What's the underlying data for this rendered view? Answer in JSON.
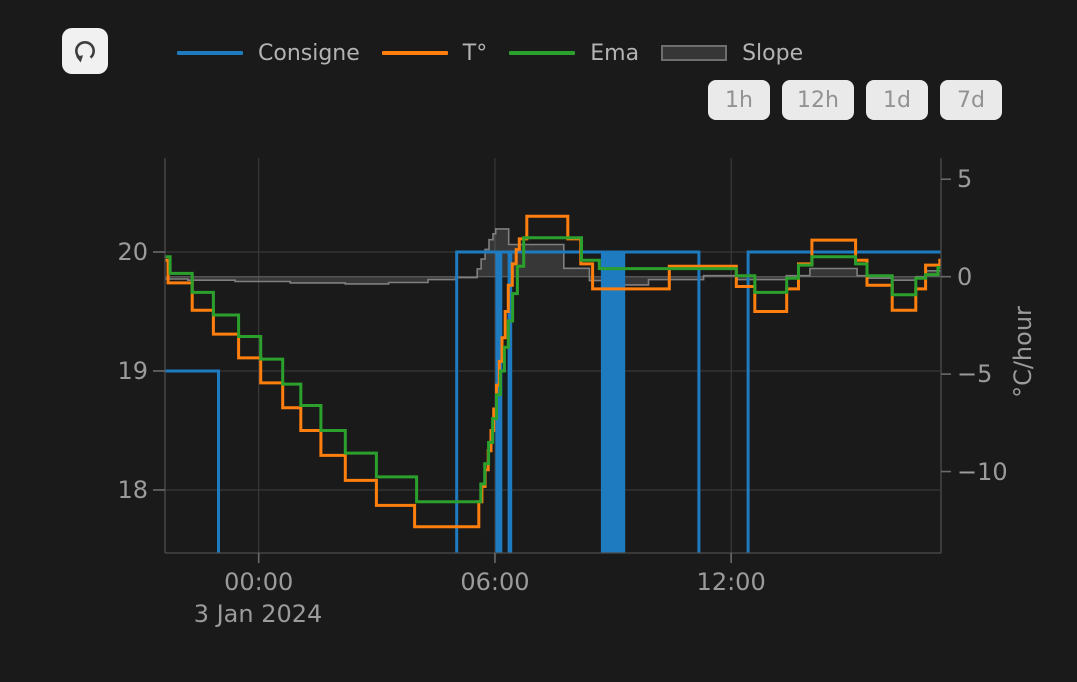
{
  "app": {
    "refresh_icon": "↻"
  },
  "legend": {
    "items": [
      {
        "id": "consigne",
        "label": "Consigne",
        "kind": "line",
        "color": "#1f7bbf"
      },
      {
        "id": "temperature",
        "label": "T°",
        "kind": "line",
        "color": "#ff7f0e"
      },
      {
        "id": "ema",
        "label": "Ema",
        "kind": "line",
        "color": "#2ca02c"
      },
      {
        "id": "slope",
        "label": "Slope",
        "kind": "area",
        "color": "#6e6e6e",
        "fill": "#363636"
      }
    ]
  },
  "range_buttons": [
    {
      "label": "1h"
    },
    {
      "label": "12h"
    },
    {
      "label": "1d"
    },
    {
      "label": "7d"
    }
  ],
  "colors": {
    "background": "#1a1a1a",
    "grid": "#3e3e3e",
    "zero_line": "#515151",
    "axis_line": "#4c4c4c",
    "tick_mark": "#6a6a6a",
    "axis_text": "#9b9b9b"
  },
  "chart_data": {
    "type": "line",
    "x_axis": {
      "tick_labels": [
        "00:00",
        "06:00",
        "12:00"
      ],
      "tick_hours": [
        0,
        6,
        12
      ],
      "date_label": "3 Jan 2024",
      "domain_hours": [
        -2.38,
        17.33
      ]
    },
    "y_axis_left": {
      "tick_labels": [
        "20",
        "19",
        "18"
      ],
      "tick_values": [
        20,
        19,
        18
      ],
      "range": [
        17.47,
        20.79
      ],
      "gridlines": true
    },
    "y_axis_right": {
      "tick_labels": [
        "5",
        "0",
        "−5",
        "−10"
      ],
      "tick_values": [
        5,
        0,
        -5,
        -10
      ],
      "title": "°C/hour",
      "range": [
        -14.18,
        6.09
      ],
      "zero_line": true
    },
    "series": [
      {
        "id": "slope",
        "name": "Slope",
        "axis": "right",
        "color": "#7f7f7f",
        "width": 1.6,
        "step": true,
        "area": true,
        "baseline": 0,
        "fill": "rgba(140,140,140,0.26)",
        "points": [
          [
            -2.38,
            -0.12
          ],
          [
            -1.8,
            -0.18
          ],
          [
            -0.6,
            -0.25
          ],
          [
            0.8,
            -0.32
          ],
          [
            2.2,
            -0.37
          ],
          [
            3.3,
            -0.3
          ],
          [
            4.3,
            -0.15
          ],
          [
            5,
            -0.05
          ],
          [
            5.55,
            0.4
          ],
          [
            5.65,
            0.9
          ],
          [
            5.75,
            1.4
          ],
          [
            5.85,
            1.9
          ],
          [
            5.95,
            2.2
          ],
          [
            6.02,
            2.45
          ],
          [
            6.35,
            1.65
          ],
          [
            7.75,
            0.43
          ],
          [
            8.4,
            -0.2
          ],
          [
            8.9,
            -0.42
          ],
          [
            9.9,
            -0.15
          ],
          [
            11.3,
            0.05
          ],
          [
            12.15,
            -0.15
          ],
          [
            13.4,
            0.05
          ],
          [
            14,
            0.42
          ],
          [
            15.2,
            0.05
          ],
          [
            15.5,
            -0.08
          ],
          [
            16.1,
            -0.18
          ],
          [
            16.7,
            0
          ],
          [
            16.95,
            0.3
          ],
          [
            17.33,
            0.3
          ]
        ]
      },
      {
        "id": "consigne",
        "name": "Consigne",
        "axis": "left",
        "color": "#1f7bbf",
        "width": 3,
        "step": true,
        "points": [
          [
            -2.38,
            19
          ],
          [
            -1.02,
            17.2
          ],
          [
            5.03,
            20
          ],
          [
            6.05,
            17.2
          ],
          [
            6.09,
            20
          ],
          [
            6.11,
            17.2
          ],
          [
            6.15,
            20
          ],
          [
            6.36,
            17.2
          ],
          [
            6.4,
            20
          ],
          [
            8.73,
            17.2
          ],
          [
            8.77,
            20
          ],
          [
            8.83,
            17.2
          ],
          [
            8.87,
            20
          ],
          [
            8.93,
            17.2
          ],
          [
            8.97,
            20
          ],
          [
            9.03,
            17.2
          ],
          [
            9.07,
            20
          ],
          [
            9.13,
            17.2
          ],
          [
            9.17,
            20
          ],
          [
            9.23,
            17.2
          ],
          [
            9.27,
            20
          ],
          [
            11.18,
            17.2
          ],
          [
            12.43,
            20
          ],
          [
            17.33,
            20
          ]
        ]
      },
      {
        "id": "temperature",
        "name": "T°",
        "axis": "left",
        "color": "#ff7f0e",
        "width": 3,
        "step": true,
        "points": [
          [
            -2.38,
            19.93
          ],
          [
            -2.3,
            19.74
          ],
          [
            -1.69,
            19.51
          ],
          [
            -1.15,
            19.31
          ],
          [
            -0.51,
            19.11
          ],
          [
            0.05,
            18.9
          ],
          [
            0.61,
            18.69
          ],
          [
            1.07,
            18.5
          ],
          [
            1.58,
            18.29
          ],
          [
            2.2,
            18.08
          ],
          [
            2.99,
            17.87
          ],
          [
            3.96,
            17.69
          ],
          [
            5.59,
            17.9
          ],
          [
            5.67,
            18.03
          ],
          [
            5.75,
            18.17
          ],
          [
            5.83,
            18.33
          ],
          [
            5.9,
            18.5
          ],
          [
            5.97,
            18.68
          ],
          [
            6.04,
            18.88
          ],
          [
            6.11,
            19.08
          ],
          [
            6.18,
            19.28
          ],
          [
            6.26,
            19.5
          ],
          [
            6.34,
            19.72
          ],
          [
            6.44,
            19.9
          ],
          [
            6.54,
            20.02
          ],
          [
            6.62,
            20.11
          ],
          [
            6.81,
            20.3
          ],
          [
            7.85,
            20.11
          ],
          [
            8.18,
            19.9
          ],
          [
            8.48,
            19.69
          ],
          [
            10.43,
            19.88
          ],
          [
            12.13,
            19.71
          ],
          [
            12.6,
            19.5
          ],
          [
            13.41,
            19.69
          ],
          [
            13.71,
            19.9
          ],
          [
            14.05,
            20.1
          ],
          [
            15.16,
            19.93
          ],
          [
            15.45,
            19.72
          ],
          [
            16.09,
            19.51
          ],
          [
            16.69,
            19.69
          ],
          [
            16.94,
            19.89
          ],
          [
            17.3,
            19.93
          ]
        ]
      },
      {
        "id": "ema",
        "name": "Ema",
        "axis": "left",
        "color": "#2ca02c",
        "width": 3,
        "step": true,
        "points": [
          [
            -2.38,
            19.96
          ],
          [
            -2.25,
            19.82
          ],
          [
            -1.69,
            19.66
          ],
          [
            -1.15,
            19.47
          ],
          [
            -0.51,
            19.29
          ],
          [
            0.05,
            19.1
          ],
          [
            0.61,
            18.89
          ],
          [
            1.07,
            18.71
          ],
          [
            1.58,
            18.5
          ],
          [
            2.2,
            18.31
          ],
          [
            2.99,
            18.11
          ],
          [
            4.01,
            17.9
          ],
          [
            5.64,
            18.05
          ],
          [
            5.74,
            18.22
          ],
          [
            5.84,
            18.4
          ],
          [
            5.94,
            18.6
          ],
          [
            6.04,
            18.8
          ],
          [
            6.14,
            19
          ],
          [
            6.24,
            19.2
          ],
          [
            6.34,
            19.42
          ],
          [
            6.45,
            19.65
          ],
          [
            6.57,
            19.88
          ],
          [
            6.73,
            20.12
          ],
          [
            8.2,
            19.93
          ],
          [
            8.65,
            19.86
          ],
          [
            12.13,
            19.8
          ],
          [
            12.6,
            19.66
          ],
          [
            13.41,
            19.78
          ],
          [
            13.71,
            19.89
          ],
          [
            14.05,
            19.96
          ],
          [
            15.16,
            19.9
          ],
          [
            15.45,
            19.8
          ],
          [
            16.09,
            19.64
          ],
          [
            16.69,
            19.78
          ],
          [
            16.94,
            19.81
          ],
          [
            17.25,
            19.87
          ]
        ]
      }
    ]
  }
}
